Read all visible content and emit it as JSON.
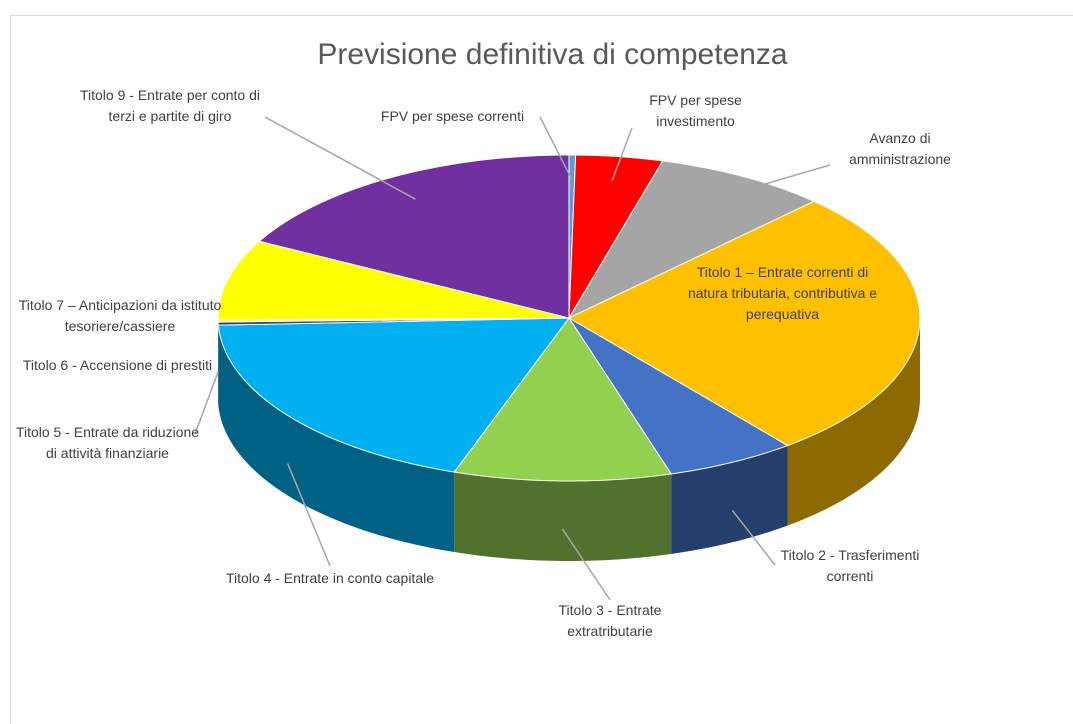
{
  "chart_data": {
    "type": "pie",
    "title": "Previsione definitiva di competenza",
    "categories": [
      "FPV per spese correnti",
      "FPV per spese investimento",
      "Avanzo di amministrazione",
      "Titolo 1 – Entrate correnti di natura tributaria, contributiva e perequativa",
      "Titolo 2 - Trasferimenti correnti",
      "Titolo 3 -  Entrate extratributarie",
      "Titolo 4 -  Entrate in conto capitale",
      "Titolo 5 -  Entrate da riduzione di attività finanziarie",
      "Titolo 6 -  Accensione di prestiti",
      "Titolo 7 – Anticipazioni da istituto tesoriere/cassiere",
      "Titolo 9 -  Entrate per conto di terzi e partite di giro"
    ],
    "values": [
      0.3,
      4,
      8,
      27,
      6,
      10,
      19,
      0.3,
      0.2,
      8,
      17.2
    ],
    "colors": [
      "#5b9bd5",
      "#ff0000",
      "#a5a5a5",
      "#ffc000",
      "#4472c4",
      "#92d050",
      "#00b0f0",
      "#264478",
      "#ffd966",
      "#ffff00",
      "#7030a0"
    ]
  }
}
